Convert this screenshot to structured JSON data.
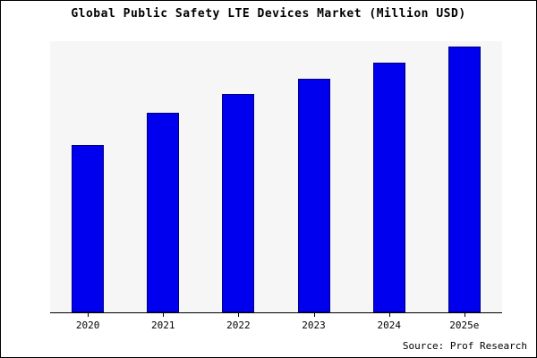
{
  "page": {
    "title": "Global Public Safety LTE Devices Market (Million USD)",
    "source_note": "Source: Prof Research"
  },
  "chart_data": {
    "type": "bar",
    "title": "Global Public Safety LTE Devices Market (Million USD)",
    "categories": [
      "2020",
      "2021",
      "2022",
      "2023",
      "2024",
      "2025e"
    ],
    "values": [
      63,
      75,
      82,
      88,
      94,
      100
    ],
    "values_note": "relative units estimated from bar heights; no y-axis labels shown",
    "xlabel": "",
    "ylabel": "",
    "ylim": [
      0,
      102
    ],
    "grid": false,
    "legend": false,
    "bar_color": "#0000ee",
    "bar_border_color": "#000080",
    "plot_background": "#f6f6f6",
    "source_note": "Source: Prof Research"
  }
}
